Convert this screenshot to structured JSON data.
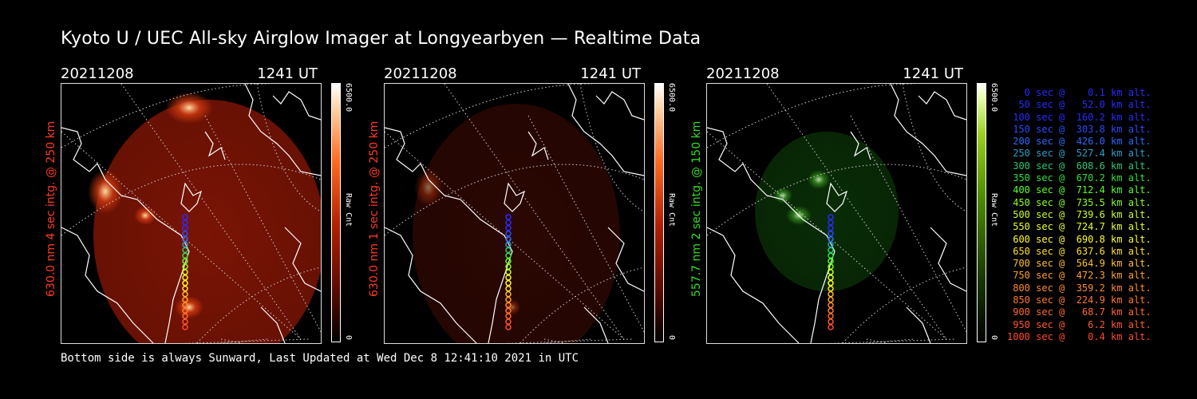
{
  "title": "Kyoto U / UEC All-sky Airglow Imager at Longyearbyen — Realtime Data",
  "panels": [
    {
      "date": "20211208",
      "time": "1241 UT",
      "ylabel": "630.0 nm 4 sec intg. @ 250 km",
      "ylabel_color": "#ff3b1f",
      "cbar_max": "6500.0",
      "cbar_min": "0",
      "cbar_label": "Raw Cnt",
      "scheme": "red",
      "intensity": 1.0
    },
    {
      "date": "20211208",
      "time": "1241 UT",
      "ylabel": "630.0 nm 1 sec intg. @ 250 km",
      "ylabel_color": "#ff3b1f",
      "cbar_max": "6500.0",
      "cbar_min": "0",
      "cbar_label": "Raw Cnt",
      "scheme": "red",
      "intensity": 0.35
    },
    {
      "date": "20211208",
      "time": "1241 UT",
      "ylabel": "557.7 nm 2 sec intg. @ 150 km",
      "ylabel_color": "#33dd22",
      "cbar_max": "6500.0",
      "cbar_min": "0",
      "cbar_label": "Raw Cnt",
      "scheme": "green",
      "intensity": 0.6
    }
  ],
  "footer": "Bottom side is always Sunward, Last Updated at Wed Dec  8 12:41:10 2021 in UTC",
  "legend": [
    {
      "text": "   0 sec @    0.1 km alt.",
      "color": "#2a2aff"
    },
    {
      "text": "  50 sec @   52.0 km alt.",
      "color": "#2a2aff"
    },
    {
      "text": " 100 sec @  160.2 km alt.",
      "color": "#2a2aff"
    },
    {
      "text": " 150 sec @  303.8 km alt.",
      "color": "#2a4aff"
    },
    {
      "text": " 200 sec @  426.0 km alt.",
      "color": "#2a6aff"
    },
    {
      "text": " 250 sec @  527.4 km alt.",
      "color": "#2aa0c8"
    },
    {
      "text": " 300 sec @  608.6 km alt.",
      "color": "#2ac878"
    },
    {
      "text": " 350 sec @  670.2 km alt.",
      "color": "#2ae040"
    },
    {
      "text": " 400 sec @  712.4 km alt.",
      "color": "#5aff2a"
    },
    {
      "text": " 450 sec @  735.5 km alt.",
      "color": "#8aff2a"
    },
    {
      "text": " 500 sec @  739.6 km alt.",
      "color": "#c8ff2a"
    },
    {
      "text": " 550 sec @  724.7 km alt.",
      "color": "#eaff2a"
    },
    {
      "text": " 600 sec @  690.8 km alt.",
      "color": "#ffff2a"
    },
    {
      "text": " 650 sec @  637.6 km alt.",
      "color": "#ffe02a"
    },
    {
      "text": " 700 sec @  564.9 km alt.",
      "color": "#ffc02a"
    },
    {
      "text": " 750 sec @  472.3 km alt.",
      "color": "#ffa02a"
    },
    {
      "text": " 800 sec @  359.2 km alt.",
      "color": "#ff8a2a"
    },
    {
      "text": " 850 sec @  224.9 km alt.",
      "color": "#ff7a2a"
    },
    {
      "text": " 900 sec @   68.7 km alt.",
      "color": "#ff6a2a"
    },
    {
      "text": " 950 sec @    6.2 km alt.",
      "color": "#ff5a2a"
    },
    {
      "text": "1000 sec @    0.4 km alt.",
      "color": "#ff4a2a"
    }
  ]
}
